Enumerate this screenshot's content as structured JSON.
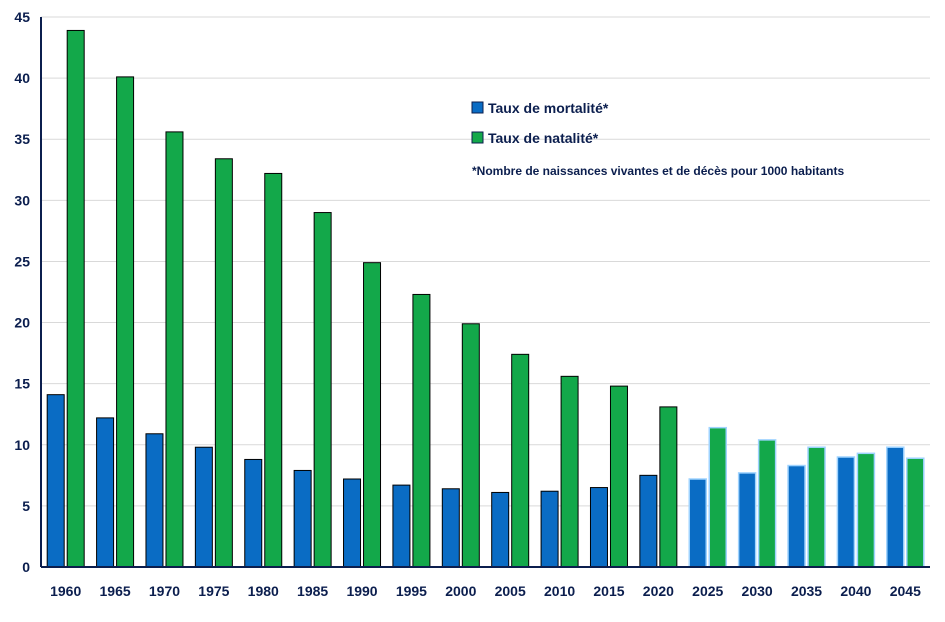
{
  "chart_data": {
    "type": "bar",
    "categories": [
      "1960",
      "1965",
      "1970",
      "1975",
      "1980",
      "1985",
      "1990",
      "1995",
      "2000",
      "2005",
      "2010",
      "2015",
      "2020",
      "2025",
      "2030",
      "2035",
      "2040",
      "2045"
    ],
    "series": [
      {
        "name": "Taux de mortalité*",
        "color": "#0a6cc4",
        "values": [
          14.1,
          12.2,
          10.9,
          9.8,
          8.8,
          7.9,
          7.2,
          6.7,
          6.4,
          6.1,
          6.2,
          6.5,
          7.5,
          7.2,
          7.7,
          8.3,
          9.0,
          9.8
        ]
      },
      {
        "name": "Taux de natalité*",
        "color": "#13a84a",
        "values": [
          43.9,
          40.1,
          35.6,
          33.4,
          32.2,
          29.0,
          24.9,
          22.3,
          19.9,
          17.4,
          15.6,
          14.8,
          13.1,
          11.4,
          10.4,
          9.8,
          9.3,
          8.9
        ]
      }
    ],
    "projected_from": "2025",
    "ylim": [
      0,
      45
    ],
    "yticks": [
      0,
      5,
      10,
      15,
      20,
      25,
      30,
      35,
      40,
      45
    ],
    "grid": true,
    "legend_position": "top-right",
    "note": "*Nombre de naissances vivantes et de décès pour 1000 habitants",
    "title": "",
    "xlabel": "",
    "ylabel": ""
  }
}
